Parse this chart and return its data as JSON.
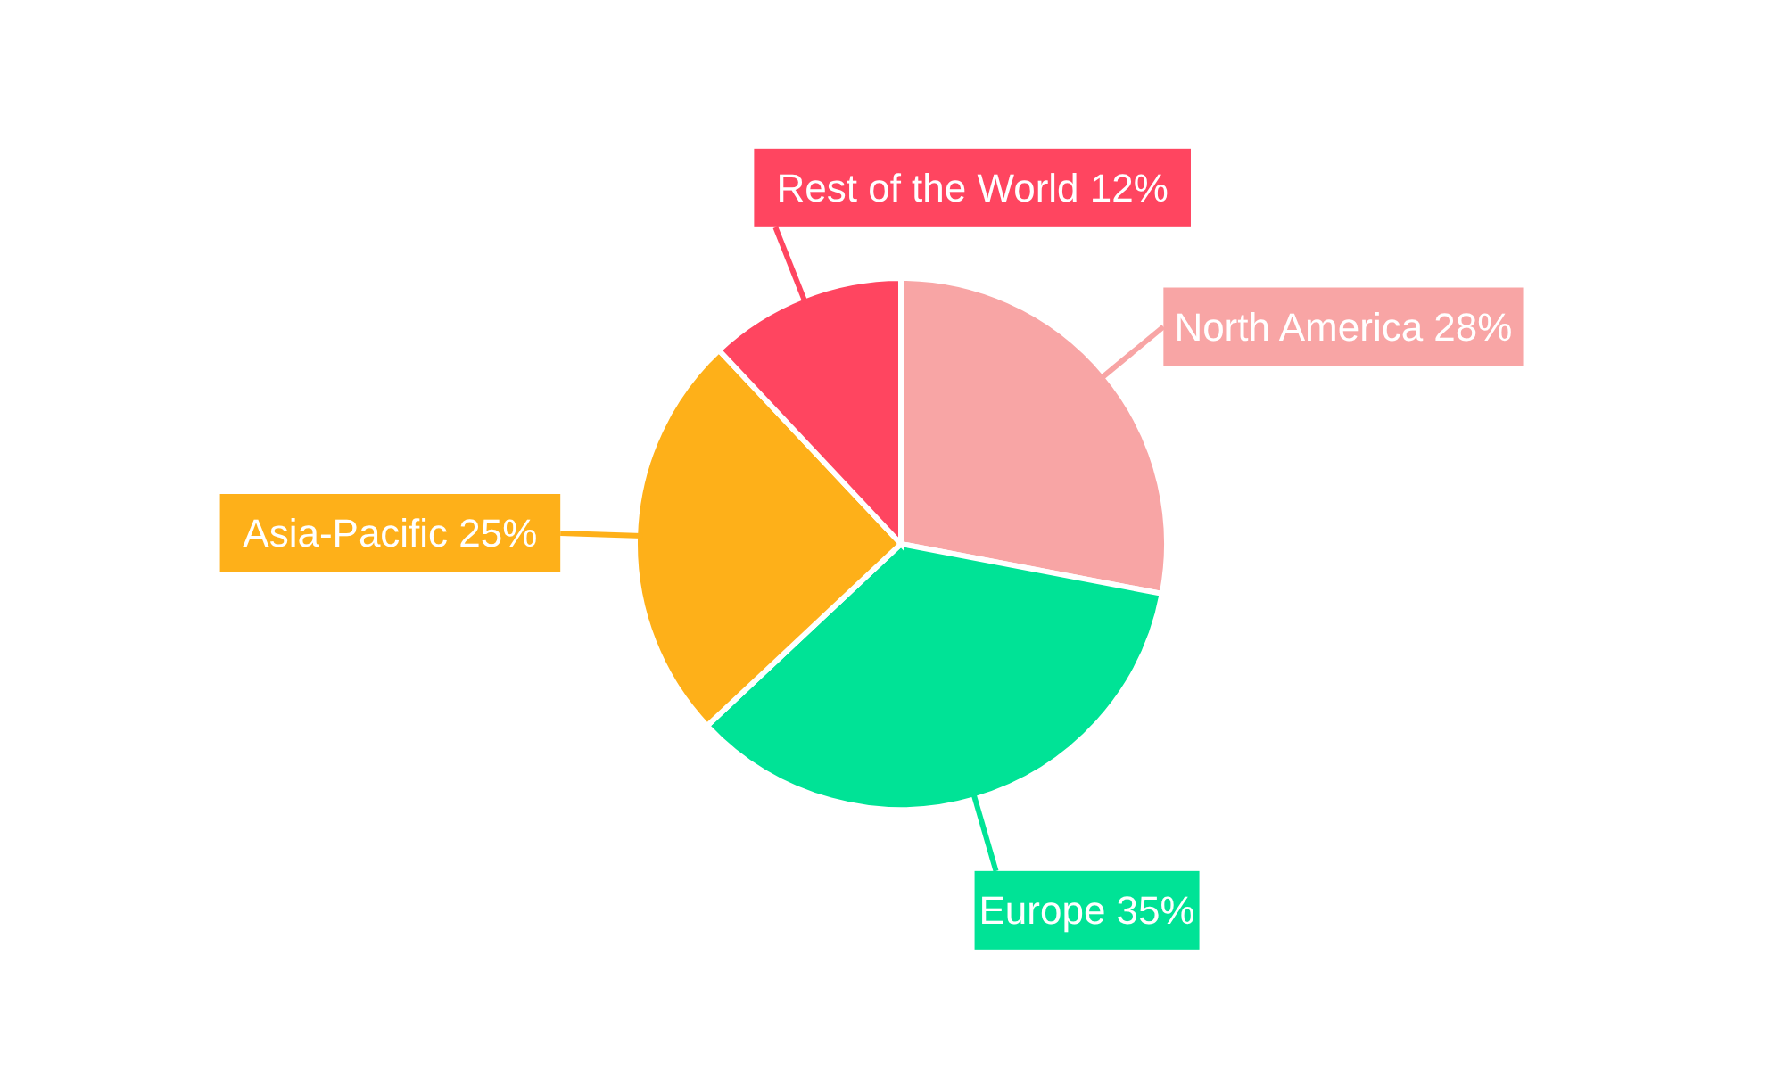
{
  "chart_data": {
    "type": "pie",
    "categories": [
      "North America",
      "Europe",
      "Asia-Pacific",
      "Rest of the World"
    ],
    "values": [
      28,
      35,
      25,
      12
    ],
    "value_labels": [
      "28%",
      "35%",
      "25%",
      "12%"
    ],
    "colors": [
      "#f8a5a5",
      "#00e396",
      "#feb019",
      "#ff4560"
    ]
  }
}
